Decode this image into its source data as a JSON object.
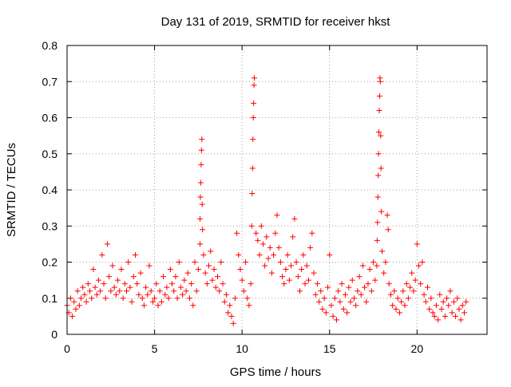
{
  "chart_data": {
    "type": "scatter",
    "title": "Day 131 of 2019, SRMTID for receiver hkst",
    "xlabel": "GPS time / hours",
    "ylabel": "SRMTID / TECUs",
    "xlim": [
      0,
      24
    ],
    "ylim": [
      0,
      0.8
    ],
    "xticks": [
      0,
      5,
      10,
      15,
      20
    ],
    "yticks": [
      0,
      0.1,
      0.2,
      0.3,
      0.4,
      0.5,
      0.6,
      0.7,
      0.8
    ],
    "xtick_labels": [
      "0",
      "5",
      "10",
      "15",
      "20"
    ],
    "ytick_labels": [
      "0",
      "0.1",
      "0.2",
      "0.3",
      "0.4",
      "0.5",
      "0.6",
      "0.7",
      "0.8"
    ],
    "grid": true,
    "marker": "+",
    "series": [
      {
        "name": "SRMTID",
        "color": "#ff0000",
        "points": [
          [
            0.0,
            0.08
          ],
          [
            0.1,
            0.06
          ],
          [
            0.2,
            0.1
          ],
          [
            0.3,
            0.05
          ],
          [
            0.4,
            0.09
          ],
          [
            0.5,
            0.07
          ],
          [
            0.6,
            0.12
          ],
          [
            0.7,
            0.08
          ],
          [
            0.8,
            0.1
          ],
          [
            0.9,
            0.13
          ],
          [
            1.0,
            0.11
          ],
          [
            1.1,
            0.09
          ],
          [
            1.2,
            0.14
          ],
          [
            1.3,
            0.12
          ],
          [
            1.4,
            0.1
          ],
          [
            1.5,
            0.18
          ],
          [
            1.6,
            0.13
          ],
          [
            1.7,
            0.11
          ],
          [
            1.8,
            0.15
          ],
          [
            1.9,
            0.12
          ],
          [
            2.0,
            0.22
          ],
          [
            2.1,
            0.14
          ],
          [
            2.2,
            0.1
          ],
          [
            2.3,
            0.25
          ],
          [
            2.4,
            0.16
          ],
          [
            2.5,
            0.12
          ],
          [
            2.6,
            0.19
          ],
          [
            2.7,
            0.13
          ],
          [
            2.8,
            0.11
          ],
          [
            2.9,
            0.15
          ],
          [
            3.0,
            0.12
          ],
          [
            3.1,
            0.18
          ],
          [
            3.2,
            0.1
          ],
          [
            3.3,
            0.14
          ],
          [
            3.4,
            0.12
          ],
          [
            3.5,
            0.2
          ],
          [
            3.6,
            0.13
          ],
          [
            3.7,
            0.09
          ],
          [
            3.8,
            0.16
          ],
          [
            3.9,
            0.22
          ],
          [
            4.0,
            0.14
          ],
          [
            4.1,
            0.11
          ],
          [
            4.2,
            0.17
          ],
          [
            4.3,
            0.1
          ],
          [
            4.4,
            0.08
          ],
          [
            4.5,
            0.13
          ],
          [
            4.6,
            0.11
          ],
          [
            4.7,
            0.19
          ],
          [
            4.8,
            0.12
          ],
          [
            4.9,
            0.09
          ],
          [
            5.0,
            0.1
          ],
          [
            5.1,
            0.14
          ],
          [
            5.2,
            0.08
          ],
          [
            5.3,
            0.12
          ],
          [
            5.4,
            0.09
          ],
          [
            5.5,
            0.16
          ],
          [
            5.6,
            0.11
          ],
          [
            5.7,
            0.13
          ],
          [
            5.8,
            0.1
          ],
          [
            5.9,
            0.18
          ],
          [
            6.0,
            0.14
          ],
          [
            6.1,
            0.12
          ],
          [
            6.2,
            0.16
          ],
          [
            6.3,
            0.1
          ],
          [
            6.4,
            0.2
          ],
          [
            6.5,
            0.13
          ],
          [
            6.6,
            0.11
          ],
          [
            6.7,
            0.15
          ],
          [
            6.8,
            0.12
          ],
          [
            6.9,
            0.17
          ],
          [
            7.0,
            0.1
          ],
          [
            7.1,
            0.14
          ],
          [
            7.2,
            0.08
          ],
          [
            7.3,
            0.2
          ],
          [
            7.4,
            0.12
          ],
          [
            7.5,
            0.18
          ],
          [
            7.6,
            0.25
          ],
          [
            7.6,
            0.32
          ],
          [
            7.62,
            0.38
          ],
          [
            7.64,
            0.42
          ],
          [
            7.66,
            0.47
          ],
          [
            7.68,
            0.51
          ],
          [
            7.7,
            0.54
          ],
          [
            7.72,
            0.36
          ],
          [
            7.74,
            0.29
          ],
          [
            7.8,
            0.22
          ],
          [
            7.9,
            0.17
          ],
          [
            8.0,
            0.14
          ],
          [
            8.1,
            0.19
          ],
          [
            8.2,
            0.23
          ],
          [
            8.3,
            0.15
          ],
          [
            8.4,
            0.18
          ],
          [
            8.5,
            0.13
          ],
          [
            8.6,
            0.16
          ],
          [
            8.7,
            0.12
          ],
          [
            8.8,
            0.2
          ],
          [
            8.9,
            0.14
          ],
          [
            9.0,
            0.09
          ],
          [
            9.1,
            0.11
          ],
          [
            9.2,
            0.06
          ],
          [
            9.3,
            0.08
          ],
          [
            9.4,
            0.05
          ],
          [
            9.5,
            0.03
          ],
          [
            9.6,
            0.1
          ],
          [
            9.7,
            0.28
          ],
          [
            9.8,
            0.22
          ],
          [
            9.9,
            0.18
          ],
          [
            10.0,
            0.15
          ],
          [
            10.1,
            0.12
          ],
          [
            10.2,
            0.2
          ],
          [
            10.3,
            0.1
          ],
          [
            10.4,
            0.08
          ],
          [
            10.5,
            0.14
          ],
          [
            10.55,
            0.3
          ],
          [
            10.58,
            0.39
          ],
          [
            10.6,
            0.46
          ],
          [
            10.62,
            0.54
          ],
          [
            10.64,
            0.6
          ],
          [
            10.66,
            0.64
          ],
          [
            10.68,
            0.69
          ],
          [
            10.7,
            0.71
          ],
          [
            10.8,
            0.28
          ],
          [
            10.9,
            0.26
          ],
          [
            11.0,
            0.22
          ],
          [
            11.1,
            0.3
          ],
          [
            11.2,
            0.25
          ],
          [
            11.3,
            0.19
          ],
          [
            11.4,
            0.27
          ],
          [
            11.5,
            0.21
          ],
          [
            11.6,
            0.24
          ],
          [
            11.7,
            0.17
          ],
          [
            11.8,
            0.22
          ],
          [
            11.9,
            0.28
          ],
          [
            12.0,
            0.33
          ],
          [
            12.1,
            0.24
          ],
          [
            12.2,
            0.2
          ],
          [
            12.3,
            0.16
          ],
          [
            12.4,
            0.14
          ],
          [
            12.5,
            0.18
          ],
          [
            12.6,
            0.22
          ],
          [
            12.7,
            0.15
          ],
          [
            12.8,
            0.19
          ],
          [
            12.9,
            0.27
          ],
          [
            13.0,
            0.32
          ],
          [
            13.1,
            0.2
          ],
          [
            13.2,
            0.16
          ],
          [
            13.3,
            0.12
          ],
          [
            13.4,
            0.18
          ],
          [
            13.5,
            0.22
          ],
          [
            13.6,
            0.14
          ],
          [
            13.7,
            0.19
          ],
          [
            13.8,
            0.15
          ],
          [
            13.9,
            0.24
          ],
          [
            14.0,
            0.28
          ],
          [
            14.1,
            0.17
          ],
          [
            14.2,
            0.11
          ],
          [
            14.3,
            0.14
          ],
          [
            14.4,
            0.09
          ],
          [
            14.5,
            0.12
          ],
          [
            14.6,
            0.07
          ],
          [
            14.7,
            0.1
          ],
          [
            14.8,
            0.06
          ],
          [
            14.9,
            0.13
          ],
          [
            15.0,
            0.22
          ],
          [
            15.1,
            0.08
          ],
          [
            15.2,
            0.05
          ],
          [
            15.3,
            0.1
          ],
          [
            15.4,
            0.04
          ],
          [
            15.5,
            0.12
          ],
          [
            15.6,
            0.09
          ],
          [
            15.7,
            0.14
          ],
          [
            15.8,
            0.07
          ],
          [
            15.9,
            0.11
          ],
          [
            16.0,
            0.06
          ],
          [
            16.1,
            0.13
          ],
          [
            16.2,
            0.09
          ],
          [
            16.3,
            0.15
          ],
          [
            16.4,
            0.1
          ],
          [
            16.5,
            0.08
          ],
          [
            16.6,
            0.12
          ],
          [
            16.7,
            0.16
          ],
          [
            16.8,
            0.11
          ],
          [
            16.9,
            0.19
          ],
          [
            17.0,
            0.13
          ],
          [
            17.1,
            0.09
          ],
          [
            17.2,
            0.14
          ],
          [
            17.3,
            0.18
          ],
          [
            17.4,
            0.12
          ],
          [
            17.5,
            0.2
          ],
          [
            17.6,
            0.15
          ],
          [
            17.7,
            0.19
          ],
          [
            17.72,
            0.26
          ],
          [
            17.74,
            0.31
          ],
          [
            17.76,
            0.38
          ],
          [
            17.78,
            0.44
          ],
          [
            17.8,
            0.5
          ],
          [
            17.82,
            0.56
          ],
          [
            17.84,
            0.62
          ],
          [
            17.86,
            0.66
          ],
          [
            17.88,
            0.71
          ],
          [
            17.9,
            0.7
          ],
          [
            17.92,
            0.55
          ],
          [
            17.94,
            0.46
          ],
          [
            17.96,
            0.34
          ],
          [
            18.0,
            0.23
          ],
          [
            18.1,
            0.17
          ],
          [
            18.2,
            0.2
          ],
          [
            18.3,
            0.33
          ],
          [
            18.35,
            0.29
          ],
          [
            18.4,
            0.14
          ],
          [
            18.5,
            0.11
          ],
          [
            18.6,
            0.08
          ],
          [
            18.7,
            0.12
          ],
          [
            18.8,
            0.07
          ],
          [
            18.9,
            0.1
          ],
          [
            19.0,
            0.06
          ],
          [
            19.1,
            0.09
          ],
          [
            19.2,
            0.12
          ],
          [
            19.3,
            0.08
          ],
          [
            19.4,
            0.14
          ],
          [
            19.5,
            0.1
          ],
          [
            19.6,
            0.13
          ],
          [
            19.7,
            0.17
          ],
          [
            19.8,
            0.12
          ],
          [
            19.9,
            0.15
          ],
          [
            20.0,
            0.25
          ],
          [
            20.1,
            0.19
          ],
          [
            20.2,
            0.14
          ],
          [
            20.3,
            0.2
          ],
          [
            20.4,
            0.11
          ],
          [
            20.5,
            0.09
          ],
          [
            20.6,
            0.13
          ],
          [
            20.7,
            0.07
          ],
          [
            20.8,
            0.1
          ],
          [
            20.9,
            0.06
          ],
          [
            21.0,
            0.05
          ],
          [
            21.1,
            0.08
          ],
          [
            21.2,
            0.04
          ],
          [
            21.3,
            0.11
          ],
          [
            21.4,
            0.07
          ],
          [
            21.5,
            0.09
          ],
          [
            21.6,
            0.05
          ],
          [
            21.7,
            0.1
          ],
          [
            21.8,
            0.08
          ],
          [
            21.9,
            0.12
          ],
          [
            22.0,
            0.06
          ],
          [
            22.1,
            0.09
          ],
          [
            22.2,
            0.05
          ],
          [
            22.3,
            0.1
          ],
          [
            22.4,
            0.07
          ],
          [
            22.5,
            0.04
          ],
          [
            22.6,
            0.08
          ],
          [
            22.7,
            0.06
          ],
          [
            22.8,
            0.09
          ]
        ]
      }
    ]
  }
}
